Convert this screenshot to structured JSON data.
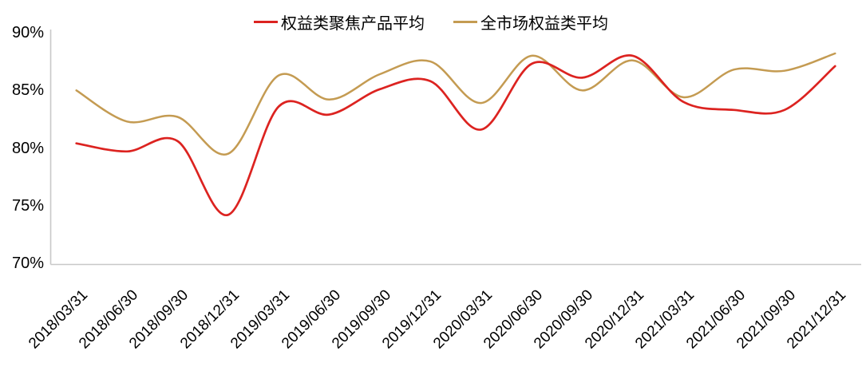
{
  "chart_data": {
    "type": "line",
    "line_style": "smooth",
    "grid": false,
    "legend_position": "top",
    "x_label_rotation": -45,
    "ylim": [
      70,
      90
    ],
    "yticks": [
      70,
      75,
      80,
      85,
      90
    ],
    "ytick_labels": [
      "70%",
      "75%",
      "80%",
      "85%",
      "90%"
    ],
    "x": [
      "2018/03/31",
      "2018/06/30",
      "2018/09/30",
      "2018/12/31",
      "2019/03/31",
      "2019/06/30",
      "2019/09/30",
      "2019/12/31",
      "2020/03/31",
      "2020/06/30",
      "2020/09/30",
      "2020/12/31",
      "2021/03/31",
      "2021/06/30",
      "2021/09/30",
      "2021/12/31"
    ],
    "series": [
      {
        "name": "权益类聚焦产品平均",
        "color": "#DC2320",
        "values": [
          80.4,
          79.7,
          80.6,
          74.2,
          83.6,
          82.9,
          85.1,
          85.8,
          81.6,
          87.3,
          86.1,
          88.0,
          84.0,
          83.3,
          83.3,
          87.1
        ]
      },
      {
        "name": "全市场权益类平均",
        "color": "#C49B52",
        "values": [
          85.0,
          82.3,
          82.7,
          79.5,
          86.3,
          84.2,
          86.4,
          87.5,
          83.9,
          88.0,
          85.0,
          87.6,
          84.4,
          86.8,
          86.7,
          88.2
        ]
      }
    ]
  },
  "colors": {
    "axis": "#C8C8C8",
    "text": "#000000",
    "background": "#FFFFFF"
  }
}
